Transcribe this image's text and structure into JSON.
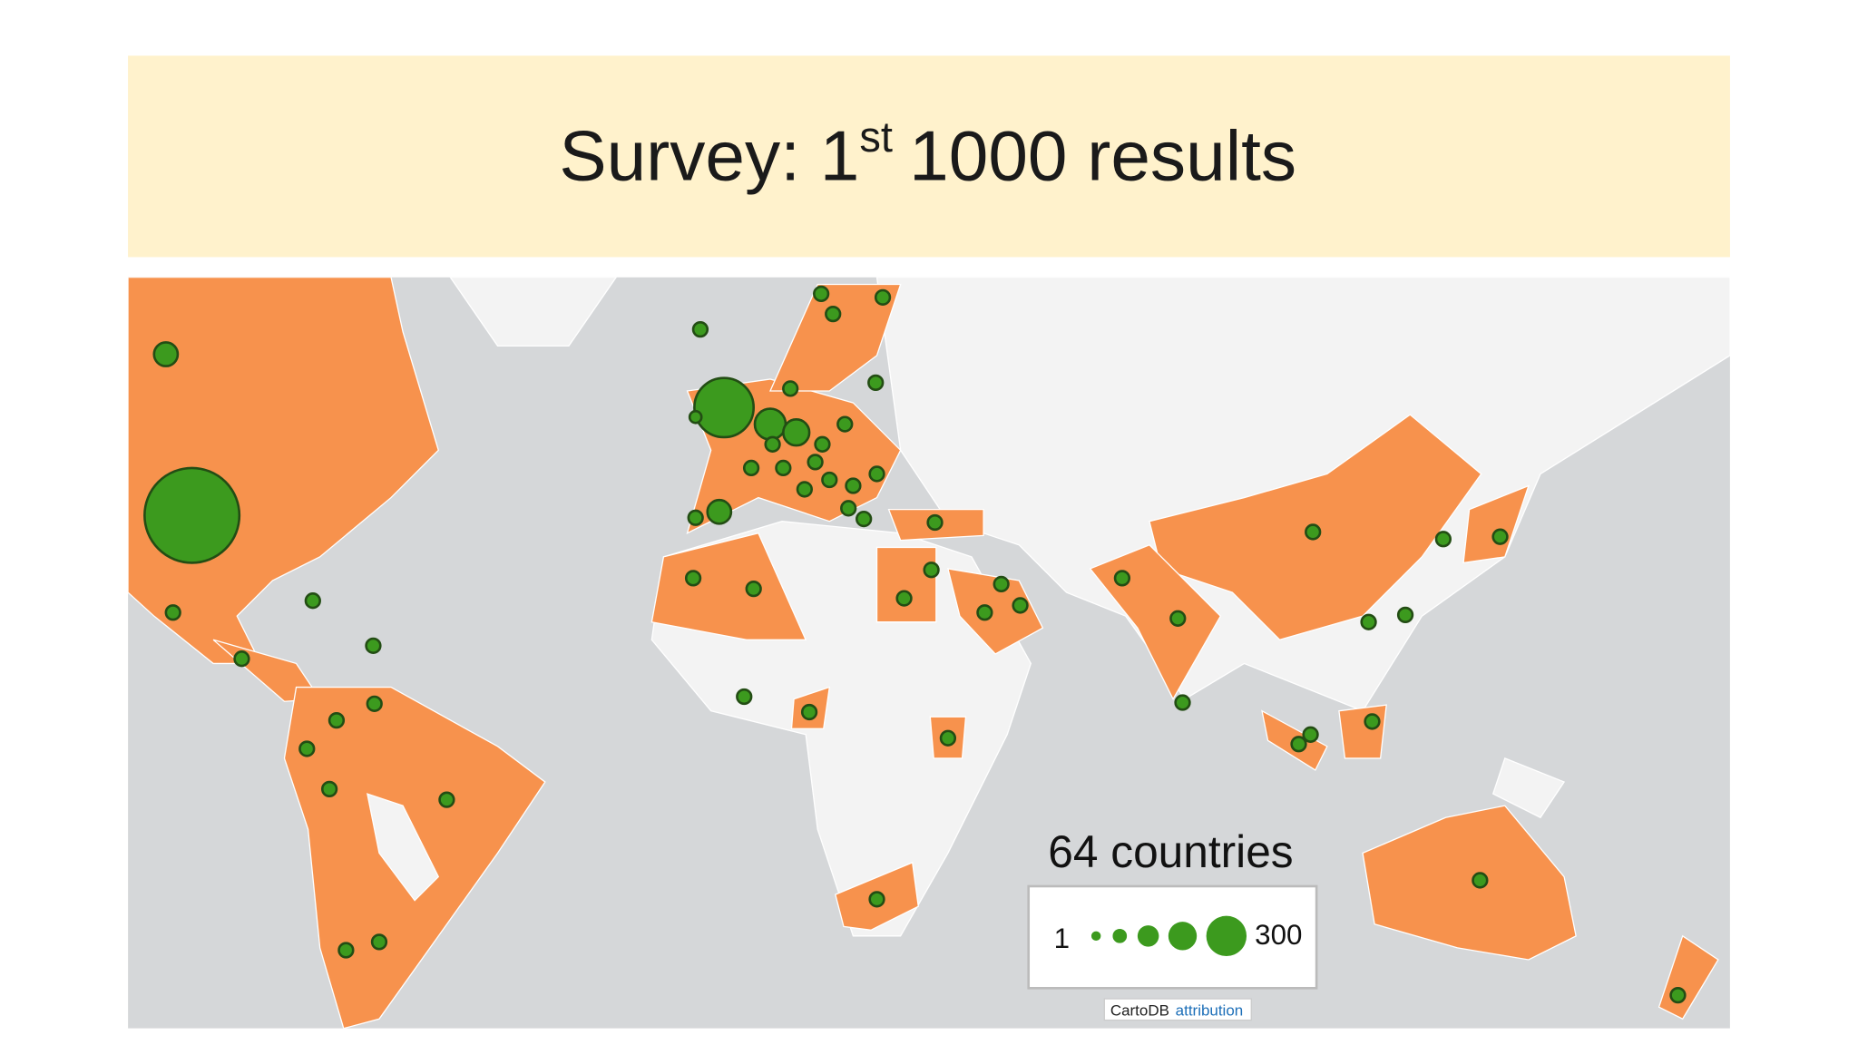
{
  "title": {
    "text": "Survey: 1",
    "superscript": "st",
    "rest": "1000 results"
  },
  "map": {
    "caption": "64 countries",
    "legend": {
      "min": 1,
      "max": 300
    },
    "attribution": {
      "source": "CartoDB",
      "link": "attribution"
    }
  }
}
